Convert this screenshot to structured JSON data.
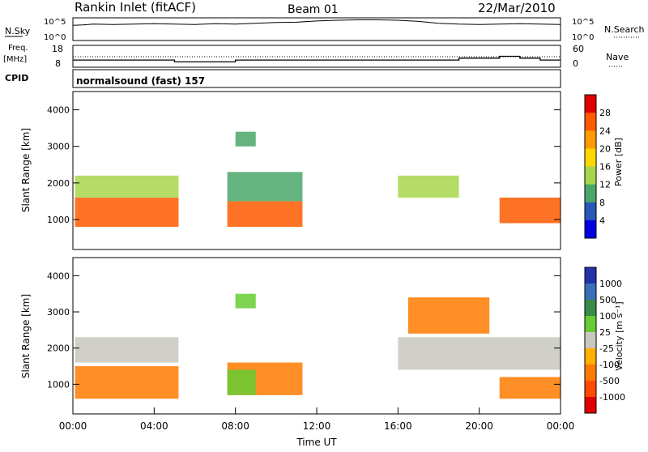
{
  "header": {
    "title": "Rankin Inlet (fitACF)",
    "beam": "Beam 01",
    "date": "22/Mar/2010"
  },
  "sky_panel": {
    "label_left": "N.Sky",
    "ticks_left": [
      "10^5",
      "10^0"
    ],
    "label_right": "N.Search",
    "ticks_right": [
      "10^5",
      "10^0"
    ]
  },
  "freq_panel": {
    "label_left_1": "Freq.",
    "label_left_2": "[MHz]",
    "ticks_left": [
      "18",
      "8"
    ],
    "label_right": "Nave",
    "ticks_right": [
      "60",
      "0"
    ]
  },
  "cpid_panel": {
    "label": "CPID",
    "value": "normalsound (fast) 157"
  },
  "power_panel": {
    "ylabel": "Slant Range [km]",
    "cbar_label": "Power [dB]",
    "cbar_ticks": [
      "28",
      "24",
      "20",
      "16",
      "12",
      "8",
      "4"
    ],
    "cbar_colors": [
      "#e00000",
      "#ff5a00",
      "#ff9a00",
      "#ffd700",
      "#a8d64a",
      "#4aa76a",
      "#2a58b8",
      "#0000e0"
    ]
  },
  "velocity_panel": {
    "ylabel": "Slant Range [km]",
    "cbar_label": "Velocity [m s⁻¹]",
    "cbar_ticks": [
      "1000",
      "500",
      "100",
      "25",
      "-25",
      "-100",
      "-500",
      "-1000"
    ],
    "cbar_colors": [
      "#2233aa",
      "#3a6fb8",
      "#3a8a4a",
      "#66cc33",
      "#c8c8c0",
      "#ffb000",
      "#ff7a00",
      "#ff4a00",
      "#e00000"
    ]
  },
  "xaxis": {
    "label": "Time UT",
    "ticks": [
      "00:00",
      "04:00",
      "08:00",
      "12:00",
      "16:00",
      "20:00",
      "00:00"
    ]
  },
  "chart_data": [
    {
      "type": "line",
      "title": "",
      "series": [
        {
          "x_hours": [
            0,
            0.5,
            1,
            2,
            3,
            4,
            5,
            6,
            7,
            8,
            9,
            10,
            11,
            12,
            13,
            14,
            15,
            16,
            17,
            18,
            19,
            20,
            21,
            22,
            23,
            24
          ],
          "values": [
            3.5,
            3.6,
            3.8,
            3.7,
            3.8,
            3.9,
            3.8,
            3.7,
            3.9,
            3.8,
            4.0,
            4.2,
            4.3,
            4.6,
            4.8,
            4.9,
            4.9,
            4.8,
            4.5,
            4.0,
            3.8,
            3.7,
            3.8,
            3.9,
            3.8,
            3.7
          ]
        }
      ],
      "xlim": [
        0,
        24
      ],
      "ylim": [
        0,
        5
      ]
    },
    {
      "type": "line",
      "series": [
        {
          "x_hours": [
            0,
            1,
            2,
            3,
            4,
            5,
            6,
            7,
            8,
            9,
            10,
            11,
            12,
            13,
            14,
            15,
            16,
            17,
            18,
            19,
            20,
            21,
            22,
            23,
            24
          ],
          "values": [
            11,
            11,
            11,
            11,
            11,
            10,
            10,
            10,
            11,
            11,
            11,
            11,
            11,
            11,
            11,
            11,
            11,
            11,
            11,
            12,
            12,
            13,
            12,
            11,
            11
          ]
        }
      ],
      "xlim": [
        0,
        24
      ],
      "ylim": [
        8,
        18
      ]
    },
    {
      "type": "heatmap",
      "ylabel": "Slant Range [km]",
      "xlabel": "Time UT",
      "xlim": [
        0,
        24
      ],
      "ylim": [
        180,
        4500
      ],
      "colorbar": {
        "label": "Power [dB]",
        "range": [
          0,
          30
        ]
      },
      "patches": [
        {
          "t0": 0.1,
          "t1": 5.2,
          "r0": 800,
          "r1": 1600,
          "value": 26
        },
        {
          "t0": 0.1,
          "t1": 5.2,
          "r0": 1600,
          "r1": 2200,
          "value": 12
        },
        {
          "t0": 7.6,
          "t1": 11.3,
          "r0": 800,
          "r1": 1500,
          "value": 24
        },
        {
          "t0": 7.6,
          "t1": 11.3,
          "r0": 1500,
          "r1": 2300,
          "value": 10
        },
        {
          "t0": 8.0,
          "t1": 9.0,
          "r0": 3000,
          "r1": 3400,
          "value": 8
        },
        {
          "t0": 16.0,
          "t1": 19.0,
          "r0": 1600,
          "r1": 2200,
          "value": 12
        },
        {
          "t0": 21.0,
          "t1": 24.0,
          "r0": 900,
          "r1": 1600,
          "value": 26
        }
      ]
    },
    {
      "type": "heatmap",
      "ylabel": "Slant Range [km]",
      "xlabel": "Time UT",
      "xlim": [
        0,
        24
      ],
      "ylim": [
        180,
        4500
      ],
      "colorbar": {
        "label": "Velocity [m s⁻¹]",
        "range": [
          -1000,
          1000
        ]
      },
      "patches": [
        {
          "t0": 0.1,
          "t1": 5.2,
          "r0": 600,
          "r1": 1500,
          "value": -200
        },
        {
          "t0": 0.1,
          "t1": 5.2,
          "r0": 1600,
          "r1": 2300,
          "value": 0
        },
        {
          "t0": 7.6,
          "t1": 11.3,
          "r0": 700,
          "r1": 1600,
          "value": -200
        },
        {
          "t0": 7.6,
          "t1": 9.0,
          "r0": 700,
          "r1": 1400,
          "value": 60
        },
        {
          "t0": 8.0,
          "t1": 9.0,
          "r0": 3100,
          "r1": 3500,
          "value": 80
        },
        {
          "t0": 16.0,
          "t1": 24.0,
          "r0": 1400,
          "r1": 2300,
          "value": 0
        },
        {
          "t0": 16.5,
          "t1": 20.5,
          "r0": 2400,
          "r1": 3400,
          "value": -200
        },
        {
          "t0": 21.0,
          "t1": 24.0,
          "r0": 600,
          "r1": 1200,
          "value": -250
        }
      ]
    }
  ]
}
